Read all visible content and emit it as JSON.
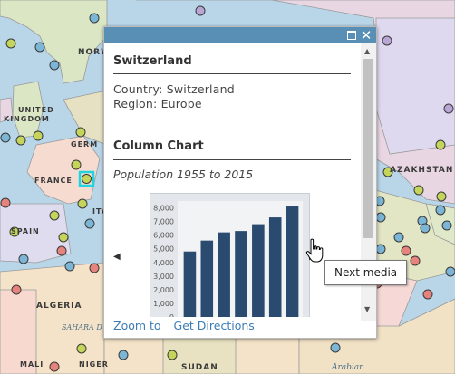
{
  "map": {
    "labels": {
      "norway": "NORW",
      "united_kingdom_1": "UNITED",
      "united_kingdom_2": "KINGDOM",
      "germany": "GERM",
      "france": "FRANCE",
      "italy": "ITA",
      "spain": "SPAIN",
      "algeria": "ALGERIA",
      "sahara": "SAHARA D",
      "mali": "MALI",
      "niger": "NIGER",
      "sudan": "SUDAN",
      "kazakhstan": "AZAKHSTAN",
      "arabian": "Arabian"
    }
  },
  "popup": {
    "title": "Switzerland",
    "country_line": "Country: Switzerland",
    "region_line": "Region: Europe",
    "media_title": "Column Chart",
    "media_caption": "Population 1955 to 2015",
    "zoom_link": "Zoom to",
    "directions_link": "Get Directions",
    "header_color": "#5a8fb5"
  },
  "chart_data": {
    "type": "bar",
    "title": "",
    "xlabel": "",
    "ylabel": "",
    "ylim": [
      0,
      8500
    ],
    "yticks": [
      "8,000",
      "7,000",
      "6,000",
      "5,000",
      "4,000",
      "3,000",
      "2,000",
      "1,000",
      "0"
    ],
    "values": [
      4800,
      5600,
      6200,
      6300,
      6800,
      7300,
      8100
    ],
    "bar_color": "#2b4a6f"
  },
  "tooltip": {
    "text": "Next media"
  },
  "icons": [
    "maximize-icon",
    "close-icon",
    "previous-media-icon",
    "next-media-icon",
    "scroll-up-icon",
    "scroll-down-icon",
    "hand-pointer-cursor"
  ]
}
